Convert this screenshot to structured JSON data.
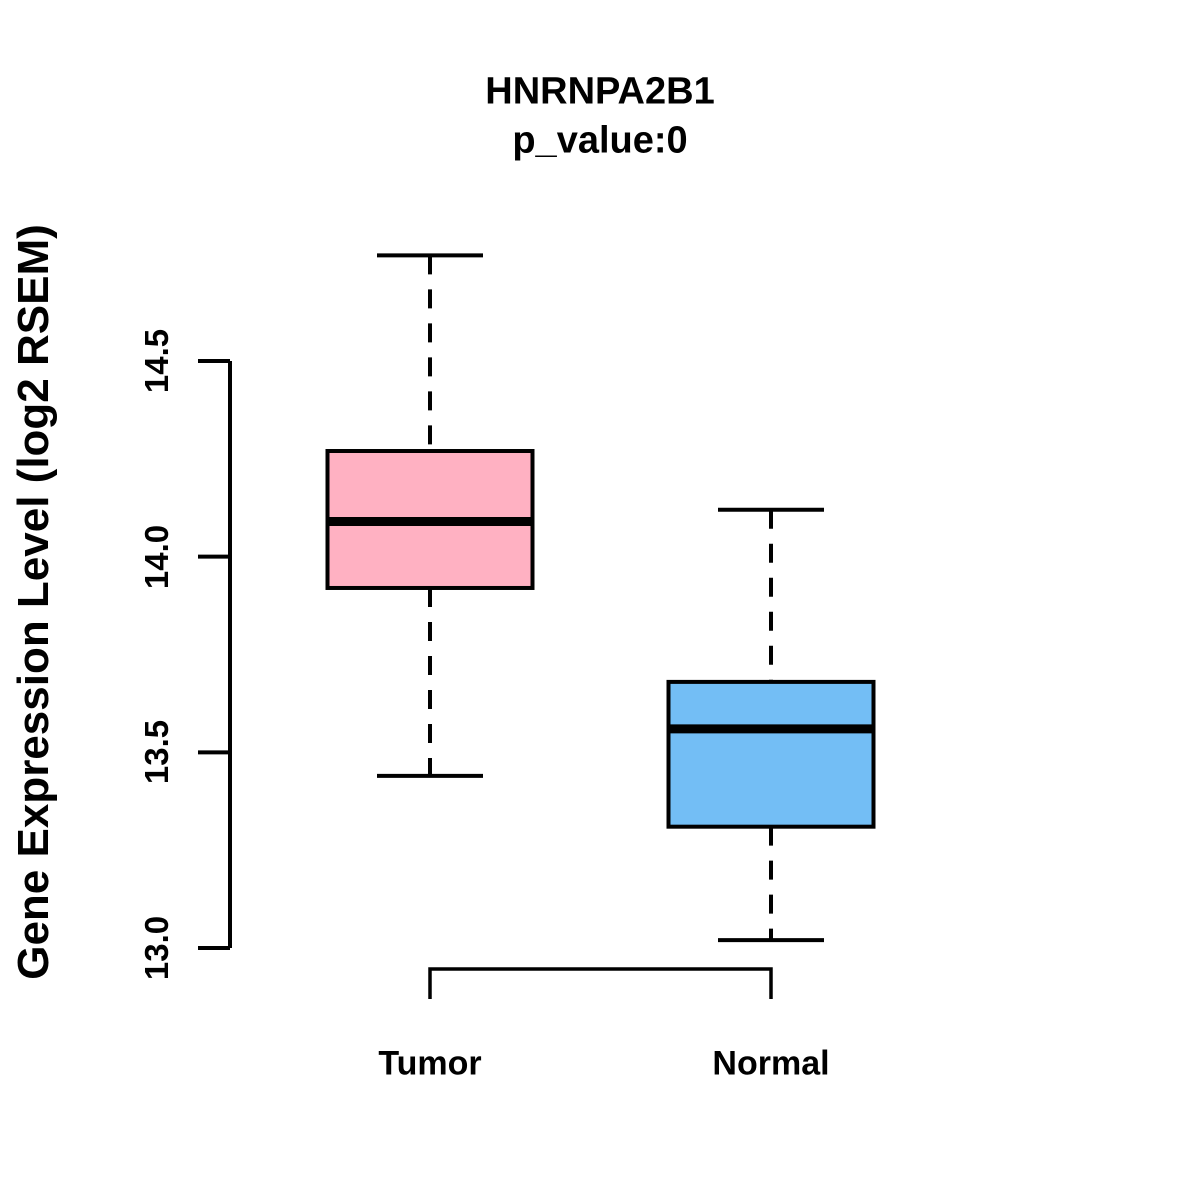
{
  "chart_data": {
    "type": "boxplot",
    "title": "HNRNPA2B1",
    "subtitle": "p_value:0",
    "ylabel": "Gene Expression Level (log2 RSEM)",
    "xlabel": "",
    "axis_range": [
      13.0,
      14.5
    ],
    "ytick_labels": [
      "14.5",
      "14.0",
      "13.5",
      "13.0"
    ],
    "grid": false,
    "legend": "none",
    "border_color": "#000000",
    "groups": [
      {
        "name": "Tumor",
        "color": "#FFB1C2",
        "stats": {
          "upper_whisker": 14.77,
          "q3": 14.27,
          "median": 14.09,
          "q1": 13.92,
          "lower_whisker": 13.44
        }
      },
      {
        "name": "Normal",
        "color": "#73BEF5",
        "stats": {
          "upper_whisker": 14.12,
          "q3": 13.68,
          "median": 13.56,
          "q1": 13.31,
          "lower_whisker": 13.02
        }
      }
    ]
  }
}
